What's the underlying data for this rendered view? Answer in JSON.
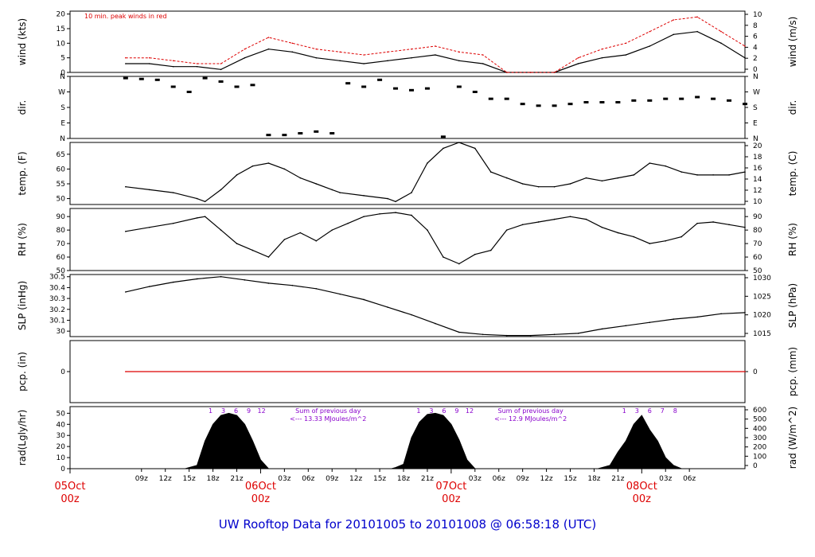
{
  "footer_title": "UW Rooftop Data for 20101005  to  20101008 @ 06:58:18  (UTC)",
  "colors": {
    "axis": "#000000",
    "peak": "#dd0000",
    "date": "#dd0000",
    "purple": "#8800cc",
    "title": "#0000cc"
  },
  "chart_data": [
    {
      "id": "wind",
      "type": "line",
      "ylabel": "wind (kts)",
      "ylabel_right": "wind (m/s)",
      "ylim": [
        0,
        21
      ],
      "yticks": [
        0,
        5,
        10,
        15,
        20
      ],
      "yticks_right": [
        0,
        2,
        4,
        6,
        8,
        10
      ],
      "annotation": "10 min. peak winds in red",
      "series": [
        {
          "name": "",
          "x": [
            0,
            3,
            6,
            9,
            12,
            15,
            18,
            21,
            24,
            27,
            30,
            33,
            36,
            39,
            42,
            45,
            48,
            51,
            54,
            57,
            60,
            63,
            66,
            69,
            72,
            75,
            78
          ],
          "values": [
            3,
            3,
            2,
            2,
            1,
            5,
            8,
            7,
            5,
            4,
            3,
            4,
            5,
            6,
            4,
            3,
            0,
            0,
            0,
            3,
            5,
            6,
            9,
            13,
            14,
            10,
            5
          ]
        },
        {
          "name": "10 min. peak winds",
          "x": [
            0,
            3,
            6,
            9,
            12,
            15,
            18,
            21,
            24,
            27,
            30,
            33,
            36,
            39,
            42,
            45,
            48,
            51,
            54,
            57,
            60,
            63,
            66,
            69,
            72,
            75,
            78
          ],
          "values": [
            5,
            5,
            4,
            3,
            3,
            8,
            12,
            10,
            8,
            7,
            6,
            7,
            8,
            9,
            7,
            6,
            0,
            0,
            0,
            5,
            8,
            10,
            14,
            18,
            19,
            14,
            9
          ]
        }
      ]
    },
    {
      "id": "dir",
      "type": "scatter",
      "ylabel": "dir.",
      "ylabel_right": "dir.",
      "ylim": [
        0,
        360
      ],
      "ytick_labels": [
        "N",
        "E",
        "S",
        "W",
        "N"
      ],
      "series": [
        {
          "name": "",
          "x": [
            0,
            2,
            4,
            6,
            8,
            10,
            12,
            14,
            16,
            18,
            20,
            22,
            24,
            26,
            28,
            30,
            32,
            34,
            36,
            38,
            40,
            42,
            44,
            46,
            48,
            50,
            52,
            54,
            56,
            58,
            60,
            62,
            64,
            66,
            68,
            70,
            72,
            74,
            76,
            78
          ],
          "values": [
            350,
            345,
            340,
            300,
            270,
            350,
            330,
            300,
            310,
            20,
            20,
            30,
            40,
            30,
            320,
            300,
            340,
            290,
            280,
            290,
            10,
            300,
            270,
            230,
            230,
            200,
            190,
            190,
            200,
            210,
            210,
            210,
            220,
            220,
            230,
            230,
            240,
            230,
            220,
            200
          ]
        }
      ]
    },
    {
      "id": "temp",
      "type": "line",
      "ylabel": "temp. (F)",
      "ylabel_right": "temp. (C)",
      "ylim": [
        48,
        69
      ],
      "yticks": [
        50,
        55,
        60,
        65
      ],
      "yticks_right": [
        10,
        12,
        14,
        16,
        18,
        20
      ],
      "series": [
        {
          "name": "",
          "x": [
            0,
            3,
            6,
            9,
            10,
            12,
            14,
            16,
            18,
            20,
            22,
            24,
            26,
            27,
            30,
            33,
            34,
            36,
            38,
            40,
            42,
            44,
            46,
            48,
            50,
            52,
            54,
            56,
            58,
            60,
            62,
            64,
            66,
            68,
            70,
            72,
            74,
            76,
            78
          ],
          "values": [
            54,
            53,
            52,
            50,
            49,
            53,
            58,
            61,
            62,
            60,
            57,
            55,
            53,
            52,
            51,
            50,
            49,
            52,
            62,
            67,
            69,
            67,
            59,
            57,
            55,
            54,
            54,
            55,
            57,
            56,
            57,
            58,
            62,
            61,
            59,
            58,
            58,
            58,
            59
          ]
        }
      ]
    },
    {
      "id": "rh",
      "type": "line",
      "ylabel": "RH (%)",
      "ylabel_right": "RH (%)",
      "ylim": [
        50,
        96
      ],
      "yticks": [
        50,
        60,
        70,
        80,
        90
      ],
      "yticks_right": [
        50,
        60,
        70,
        80,
        90
      ],
      "series": [
        {
          "name": "",
          "x": [
            0,
            3,
            6,
            9,
            10,
            12,
            14,
            16,
            18,
            20,
            22,
            24,
            26,
            28,
            30,
            32,
            34,
            36,
            38,
            40,
            42,
            44,
            46,
            48,
            50,
            52,
            54,
            56,
            58,
            60,
            62,
            64,
            66,
            68,
            70,
            72,
            74,
            76,
            78
          ],
          "values": [
            79,
            82,
            85,
            89,
            90,
            80,
            70,
            65,
            60,
            73,
            78,
            72,
            80,
            85,
            90,
            92,
            93,
            91,
            80,
            60,
            55,
            62,
            65,
            80,
            84,
            86,
            88,
            90,
            88,
            82,
            78,
            75,
            70,
            72,
            75,
            85,
            86,
            84,
            82
          ]
        }
      ]
    },
    {
      "id": "slp",
      "type": "line",
      "ylabel": "SLP (inHg)",
      "ylabel_right": "SLP (hPa)",
      "ylim": [
        29.95,
        30.52
      ],
      "yticks": [
        30.0,
        30.1,
        30.2,
        30.3,
        30.4,
        30.5
      ],
      "yticks_right": [
        1015,
        1020,
        1025,
        1030
      ],
      "series": [
        {
          "name": "",
          "x": [
            0,
            3,
            6,
            9,
            12,
            15,
            18,
            21,
            24,
            27,
            30,
            33,
            36,
            39,
            42,
            45,
            48,
            51,
            54,
            57,
            60,
            63,
            66,
            69,
            72,
            75,
            78
          ],
          "values": [
            30.36,
            30.41,
            30.45,
            30.48,
            30.5,
            30.47,
            30.44,
            30.42,
            30.39,
            30.34,
            30.29,
            30.22,
            30.15,
            30.07,
            29.99,
            29.97,
            29.96,
            29.96,
            29.97,
            29.98,
            30.02,
            30.05,
            30.08,
            30.11,
            30.13,
            30.16,
            30.17
          ]
        }
      ]
    },
    {
      "id": "pcp",
      "type": "line",
      "ylabel": "pcp. (in)",
      "ylabel_right": "pcp. (mm)",
      "ylim": [
        -1,
        1
      ],
      "yticks": [
        0
      ],
      "yticks_right": [
        0
      ],
      "series": [
        {
          "name": "",
          "x": [
            0,
            78
          ],
          "values": [
            0,
            0
          ]
        }
      ]
    },
    {
      "id": "rad",
      "type": "area",
      "ylabel": "rad(Lgly/hr)",
      "ylabel_right": "rad (W/m^2)",
      "ylim": [
        0,
        56
      ],
      "yticks": [
        0,
        10,
        20,
        30,
        40,
        50
      ],
      "yticks_right": [
        0,
        100,
        200,
        300,
        400,
        500,
        600
      ],
      "series": [
        {
          "name": "",
          "x": [
            7.5,
            8,
            9,
            10,
            11,
            12,
            13,
            14,
            15,
            16,
            17,
            18
          ],
          "values": [
            0,
            1,
            3,
            25,
            40,
            48,
            50,
            48,
            40,
            25,
            8,
            0
          ]
        },
        {
          "name": "",
          "x": [
            33.5,
            34,
            35,
            36,
            37,
            38,
            39,
            40,
            41,
            42,
            43,
            44
          ],
          "values": [
            0,
            1,
            4,
            28,
            42,
            49,
            50,
            48,
            40,
            26,
            8,
            0
          ]
        },
        {
          "name": "",
          "x": [
            59.5,
            60,
            61,
            62,
            63,
            64,
            65,
            66,
            67,
            68,
            69,
            70
          ],
          "values": [
            0,
            1,
            3,
            15,
            25,
            40,
            48,
            35,
            25,
            10,
            3,
            0
          ]
        }
      ],
      "hour_labels": [
        {
          "x": 10.7,
          "labels": [
            "1",
            "3",
            "6",
            "9",
            "12"
          ]
        },
        {
          "x": 36.9,
          "labels": [
            "1",
            "3",
            "6",
            "9",
            "12"
          ]
        },
        {
          "x": 62.8,
          "labels": [
            "1",
            "3",
            "6",
            "7",
            "8"
          ]
        }
      ],
      "sum_labels": [
        {
          "title": "Sum of previous day",
          "value": "<--- 13.33 MJoules/m^2"
        },
        {
          "title": "Sum of previous day",
          "value": "<--- 12.9 MJoules/m^2"
        }
      ]
    }
  ],
  "x_axis": {
    "hours_start": 7,
    "tick_labels": [
      "09z",
      "12z",
      "15z",
      "18z",
      "21z",
      "03z",
      "06z",
      "09z",
      "12z",
      "15z",
      "18z",
      "21z",
      "03z",
      "06z",
      "09z",
      "12z",
      "15z",
      "18z",
      "21z",
      "03z",
      "06z"
    ],
    "tick_hours": [
      2,
      5,
      8,
      11,
      14,
      20,
      23,
      26,
      29,
      32,
      35,
      38,
      44,
      47,
      50,
      53,
      56,
      59,
      62,
      68,
      71
    ],
    "date_labels": [
      {
        "day": "05Oct",
        "time": "00z",
        "hour": -7
      },
      {
        "day": "06Oct",
        "time": "00z",
        "hour": 17
      },
      {
        "day": "07Oct",
        "time": "00z",
        "hour": 41
      },
      {
        "day": "08Oct",
        "time": "00z",
        "hour": 65
      }
    ]
  }
}
